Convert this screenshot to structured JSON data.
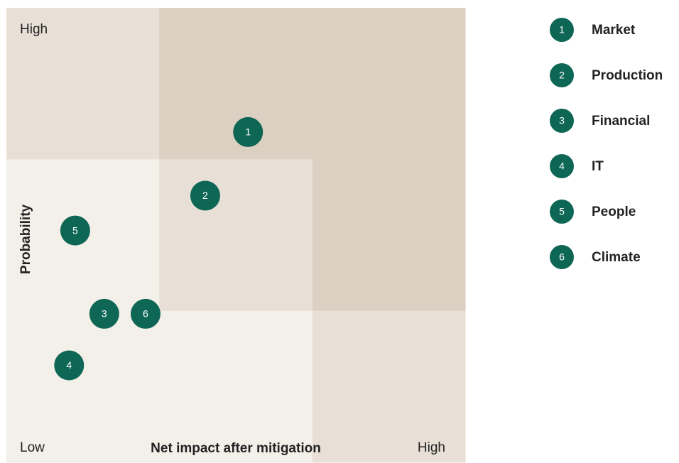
{
  "chart_data": {
    "type": "scatter",
    "x_label": "Net impact after mitigation",
    "y_label": "Probability",
    "x_low_label": "Low",
    "x_high_label": "High",
    "y_high_label": "High",
    "xlim": [
      0,
      3
    ],
    "ylim": [
      0,
      3
    ],
    "color": "#0e6655",
    "series": [
      {
        "name": "Market",
        "marker_label": "1",
        "x": [
          1.58
        ],
        "y": [
          2.18
        ]
      },
      {
        "name": "Production",
        "marker_label": "2",
        "x": [
          1.3
        ],
        "y": [
          1.76
        ]
      },
      {
        "name": "Financial",
        "marker_label": "3",
        "x": [
          0.64
        ],
        "y": [
          0.98
        ]
      },
      {
        "name": "IT",
        "marker_label": "4",
        "x": [
          0.41
        ],
        "y": [
          0.64
        ]
      },
      {
        "name": "People",
        "marker_label": "5",
        "x": [
          0.45
        ],
        "y": [
          1.53
        ]
      },
      {
        "name": "Climate",
        "marker_label": "6",
        "x": [
          0.91
        ],
        "y": [
          0.98
        ]
      }
    ]
  }
}
